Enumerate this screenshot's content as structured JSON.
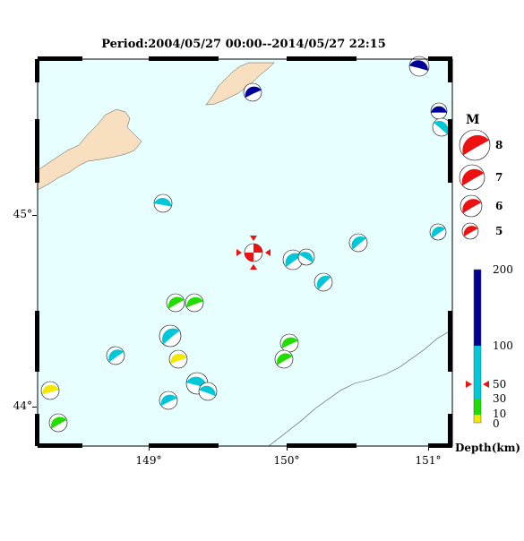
{
  "title": "Period:2004/05/27 00:00--2014/05/27 22:15",
  "axes": {
    "y_ticks": [
      "45°",
      "44°"
    ],
    "x_ticks": [
      "149°",
      "150°",
      "151°"
    ]
  },
  "magnitude_legend": {
    "title": "M",
    "items": [
      "8",
      "7",
      "6",
      "5"
    ]
  },
  "depth_legend": {
    "title": "Depth(km)",
    "ticks": [
      "200",
      "100",
      "50",
      "30",
      "10",
      "0"
    ],
    "colors": {
      "0-10": "#f2e800",
      "10-30": "#22dd00",
      "30-100": "#00c8d8",
      "100-200": "#000099"
    }
  },
  "colors": {
    "sea": "#e8ffff",
    "land": "#f7dfbf",
    "marker": "#ee1111",
    "frame": "#000000"
  },
  "mechanisms": [
    {
      "name": "event-1",
      "color": "deep"
    },
    {
      "name": "event-2",
      "color": "deep"
    },
    {
      "name": "event-3",
      "color": "deep"
    },
    {
      "name": "event-4",
      "color": "intermediate"
    },
    {
      "name": "event-5",
      "color": "intermediate"
    },
    {
      "name": "event-6",
      "color": "intermediate"
    },
    {
      "name": "event-7",
      "color": "intermediate"
    },
    {
      "name": "event-8",
      "color": "intermediate"
    },
    {
      "name": "event-9",
      "color": "intermediate"
    },
    {
      "name": "event-10",
      "color": "intermediate"
    },
    {
      "name": "event-11",
      "color": "shallow"
    },
    {
      "name": "event-12",
      "color": "shallow"
    },
    {
      "name": "event-13",
      "color": "intermediate"
    },
    {
      "name": "event-14",
      "color": "intermediate"
    },
    {
      "name": "event-15",
      "color": "very-shallow"
    },
    {
      "name": "event-16",
      "color": "shallow"
    },
    {
      "name": "event-17",
      "color": "shallow"
    },
    {
      "name": "event-18",
      "color": "intermediate"
    },
    {
      "name": "event-19",
      "color": "intermediate"
    },
    {
      "name": "event-20",
      "color": "intermediate"
    },
    {
      "name": "event-21",
      "color": "very-shallow"
    },
    {
      "name": "event-22",
      "color": "shallow"
    }
  ]
}
